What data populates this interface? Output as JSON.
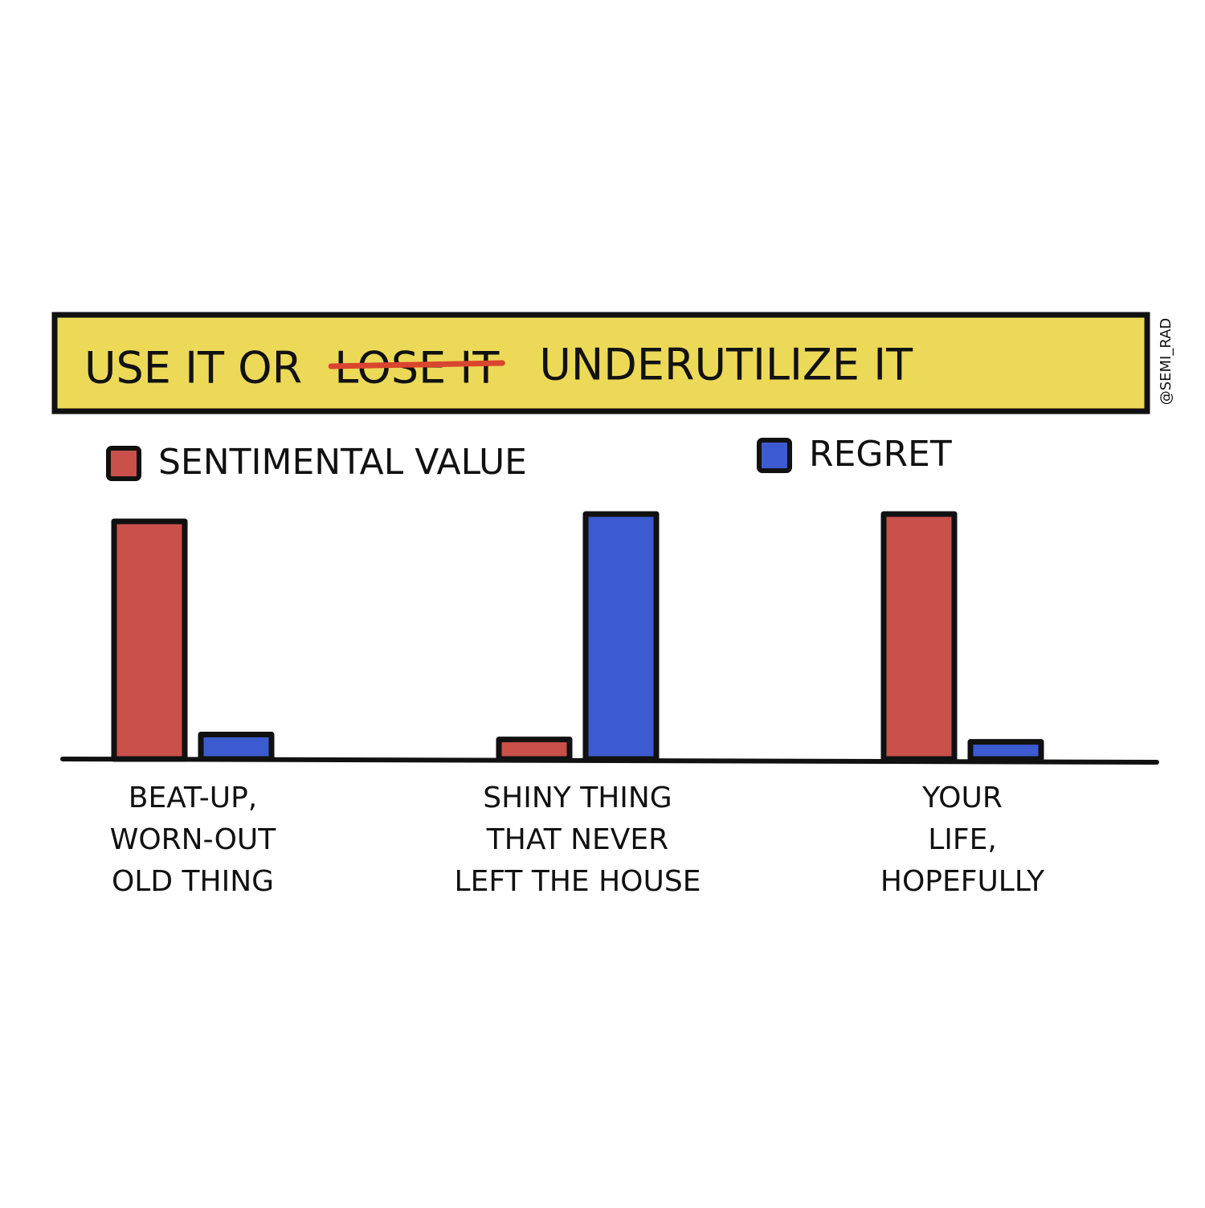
{
  "chart_data": {
    "type": "bar",
    "title": {
      "prefix": "USE IT OR",
      "struck": "LOSE IT",
      "suffix": "UNDERUTILIZE IT"
    },
    "credit": "@SEMI_RAD",
    "categories": [
      [
        "BEAT-UP,",
        "WORN-OUT",
        "OLD THING"
      ],
      [
        "SHINY THING",
        "THAT NEVER",
        "LEFT THE HOUSE"
      ],
      [
        "YOUR",
        "LIFE,",
        "HOPEFULLY"
      ]
    ],
    "series": [
      {
        "name": "SENTIMENTAL VALUE",
        "color": "#c9514a",
        "values": [
          97,
          8,
          100
        ]
      },
      {
        "name": "REGRET",
        "color": "#3c5bd0",
        "values": [
          10,
          100,
          7
        ]
      }
    ]
  }
}
